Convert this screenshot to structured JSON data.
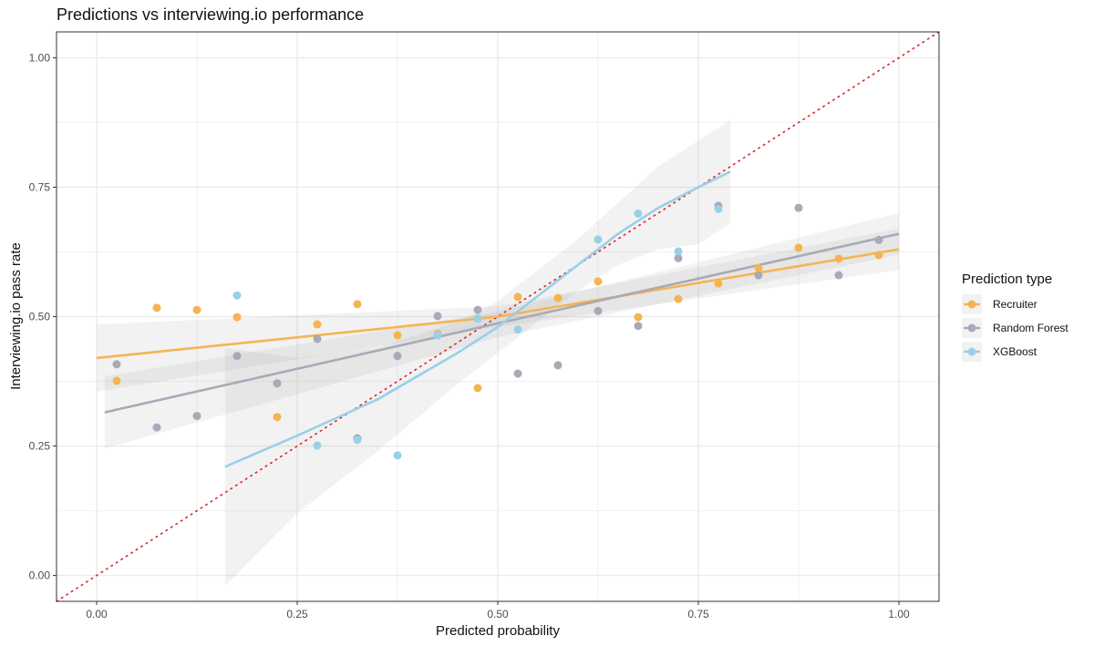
{
  "chart_data": {
    "type": "scatter",
    "title": "Predictions vs interviewing.io performance",
    "xlabel": "Predicted probability",
    "ylabel": "Interviewing.io pass rate",
    "xlim": [
      -0.05,
      1.05
    ],
    "ylim": [
      -0.05,
      1.05
    ],
    "xticks": [
      "0.00",
      "0.25",
      "0.50",
      "0.75",
      "1.00"
    ],
    "yticks": [
      "0.00",
      "0.25",
      "0.50",
      "0.75",
      "1.00"
    ],
    "grid": true,
    "reference_line": "y = x (dotted red)",
    "legend": {
      "title": "Prediction type",
      "placement": "right"
    },
    "series": [
      {
        "name": "Recruiter",
        "color": "#F5B451",
        "points": [
          [
            0.025,
            0.376
          ],
          [
            0.075,
            0.517
          ],
          [
            0.125,
            0.513
          ],
          [
            0.175,
            0.499
          ],
          [
            0.225,
            0.306
          ],
          [
            0.275,
            0.485
          ],
          [
            0.325,
            0.524
          ],
          [
            0.375,
            0.464
          ],
          [
            0.425,
            0.467
          ],
          [
            0.475,
            0.362
          ],
          [
            0.525,
            0.538
          ],
          [
            0.575,
            0.536
          ],
          [
            0.625,
            0.568
          ],
          [
            0.675,
            0.499
          ],
          [
            0.725,
            0.534
          ],
          [
            0.775,
            0.564
          ],
          [
            0.825,
            0.594
          ],
          [
            0.875,
            0.633
          ],
          [
            0.925,
            0.612
          ],
          [
            0.975,
            0.619
          ]
        ],
        "fit": [
          [
            0,
            0.42,
            0.355,
            0.485
          ],
          [
            0.5,
            0.5,
            0.48,
            0.52
          ],
          [
            1,
            0.63,
            0.59,
            0.67
          ]
        ]
      },
      {
        "name": "Random Forest",
        "color": "#A9A9B8",
        "points": [
          [
            0.025,
            0.408
          ],
          [
            0.075,
            0.286
          ],
          [
            0.125,
            0.308
          ],
          [
            0.175,
            0.424
          ],
          [
            0.225,
            0.371
          ],
          [
            0.275,
            0.457
          ],
          [
            0.325,
            0.265
          ],
          [
            0.375,
            0.424
          ],
          [
            0.425,
            0.501
          ],
          [
            0.475,
            0.513
          ],
          [
            0.525,
            0.39
          ],
          [
            0.575,
            0.406
          ],
          [
            0.625,
            0.511
          ],
          [
            0.675,
            0.482
          ],
          [
            0.725,
            0.613
          ],
          [
            0.775,
            0.714
          ],
          [
            0.825,
            0.58
          ],
          [
            0.875,
            0.71
          ],
          [
            0.925,
            0.58
          ],
          [
            0.975,
            0.648
          ]
        ],
        "fit": [
          [
            0.01,
            0.315,
            0.245,
            0.385
          ],
          [
            0.5,
            0.487,
            0.46,
            0.51
          ],
          [
            1,
            0.66,
            0.62,
            0.7
          ]
        ]
      },
      {
        "name": "XGBoost",
        "color": "#9ACFEA",
        "points": [
          [
            0.175,
            0.541
          ],
          [
            0.275,
            0.251
          ],
          [
            0.325,
            0.262
          ],
          [
            0.375,
            0.232
          ],
          [
            0.425,
            0.464
          ],
          [
            0.475,
            0.496
          ],
          [
            0.525,
            0.475
          ],
          [
            0.625,
            0.649
          ],
          [
            0.675,
            0.699
          ],
          [
            0.725,
            0.626
          ],
          [
            0.775,
            0.708
          ]
        ],
        "fit": [
          [
            0.16,
            0.21,
            -0.02,
            0.44
          ],
          [
            0.25,
            0.27,
            0.12,
            0.42
          ],
          [
            0.35,
            0.34,
            0.24,
            0.44
          ],
          [
            0.45,
            0.43,
            0.37,
            0.49
          ],
          [
            0.5,
            0.48,
            0.43,
            0.53
          ],
          [
            0.55,
            0.54,
            0.49,
            0.59
          ],
          [
            0.6,
            0.6,
            0.55,
            0.65
          ],
          [
            0.65,
            0.66,
            0.6,
            0.72
          ],
          [
            0.7,
            0.71,
            0.63,
            0.79
          ],
          [
            0.75,
            0.75,
            0.64,
            0.84
          ],
          [
            0.79,
            0.78,
            0.68,
            0.88
          ]
        ]
      }
    ]
  }
}
